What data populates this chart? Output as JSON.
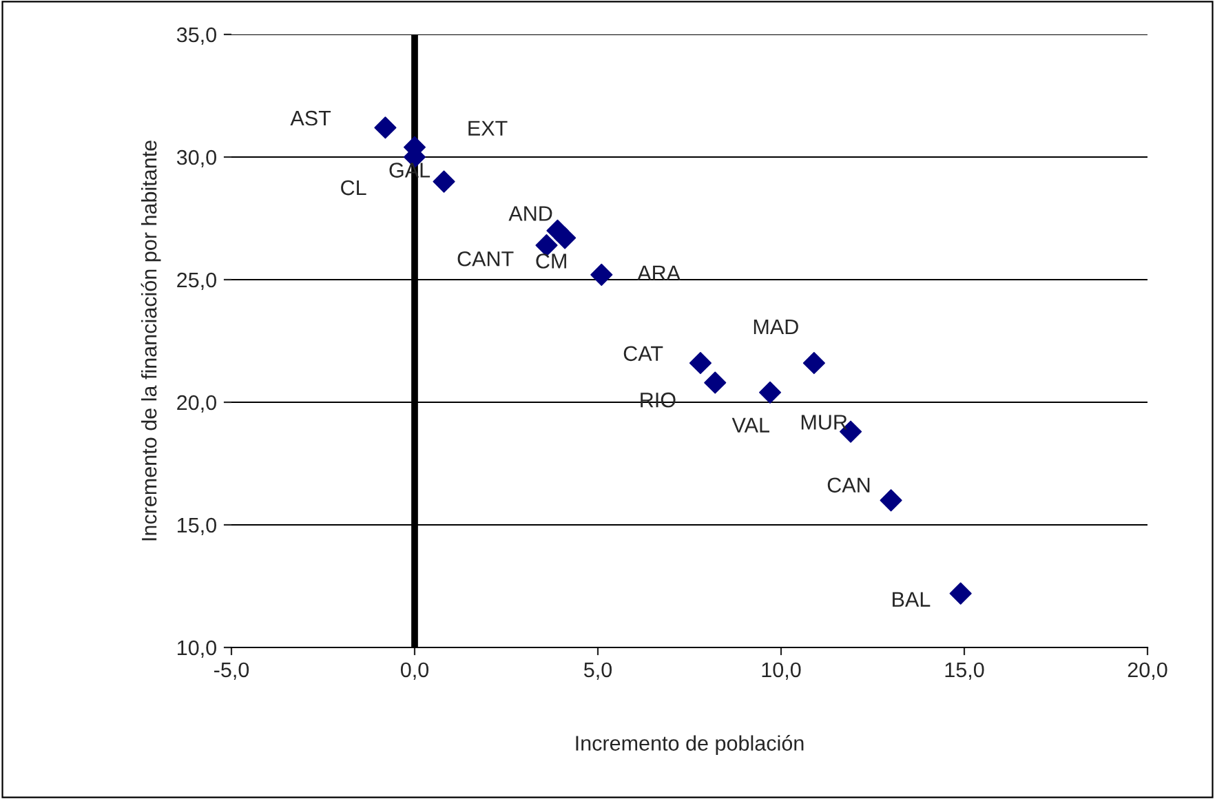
{
  "chart_data": {
    "type": "scatter",
    "xlabel": "Incremento de población",
    "ylabel": "Incremento de la financiación por habitante",
    "series": [
      {
        "name": "AST",
        "color": "#000080",
        "x": [
          -0.8
        ],
        "values": [
          31.2
        ]
      },
      {
        "name": "EXT",
        "color": "#000080",
        "x": [
          0.0
        ],
        "values": [
          30.4
        ]
      },
      {
        "name": "CL",
        "color": "#000080",
        "x": [
          0.0
        ],
        "values": [
          30.0
        ]
      },
      {
        "name": "GAL",
        "color": "#000080",
        "x": [
          0.8
        ],
        "values": [
          29.0
        ]
      },
      {
        "name": "CANT",
        "color": "#000080",
        "x": [
          3.6
        ],
        "values": [
          26.4
        ]
      },
      {
        "name": "AND",
        "color": "#000080",
        "x": [
          3.9
        ],
        "values": [
          27.0
        ]
      },
      {
        "name": "CM",
        "color": "#000080",
        "x": [
          4.1
        ],
        "values": [
          26.7
        ]
      },
      {
        "name": "ARA",
        "color": "#000080",
        "x": [
          5.1
        ],
        "values": [
          25.2
        ]
      },
      {
        "name": "CAT",
        "color": "#000080",
        "x": [
          7.8
        ],
        "values": [
          21.6
        ]
      },
      {
        "name": "RIO",
        "color": "#000080",
        "x": [
          8.2
        ],
        "values": [
          20.8
        ]
      },
      {
        "name": "VAL",
        "color": "#000080",
        "x": [
          9.7
        ],
        "values": [
          20.4
        ]
      },
      {
        "name": "MAD",
        "color": "#000080",
        "x": [
          10.9
        ],
        "values": [
          21.6
        ]
      },
      {
        "name": "MUR",
        "color": "#000080",
        "x": [
          11.9
        ],
        "values": [
          18.8
        ]
      },
      {
        "name": "CAN",
        "color": "#000080",
        "x": [
          13.0
        ],
        "values": [
          16.0
        ]
      },
      {
        "name": "BAL",
        "color": "#000080",
        "x": [
          14.9
        ],
        "values": [
          12.2
        ]
      }
    ],
    "marker": "diamond",
    "xlim": [
      -5,
      20
    ],
    "xticks": [
      {
        "value": -5,
        "label": "-5,0"
      },
      {
        "value": 0,
        "label": "0,0"
      },
      {
        "value": 5,
        "label": "5,0"
      },
      {
        "value": 10,
        "label": "10,0"
      },
      {
        "value": 15,
        "label": "15,0"
      },
      {
        "value": 20,
        "label": "20,0"
      }
    ],
    "ylim": [
      10,
      35
    ],
    "yticks": [
      {
        "value": 10,
        "label": "10,0"
      },
      {
        "value": 15,
        "label": "15,0"
      },
      {
        "value": 20,
        "label": "20,0"
      },
      {
        "value": 25,
        "label": "25,0"
      },
      {
        "value": 30,
        "label": "30,0"
      },
      {
        "value": 35,
        "label": "35,0"
      }
    ],
    "grid": "y",
    "ref_lines": [
      {
        "axis": "x",
        "value": 0,
        "color": "#000000"
      }
    ]
  }
}
